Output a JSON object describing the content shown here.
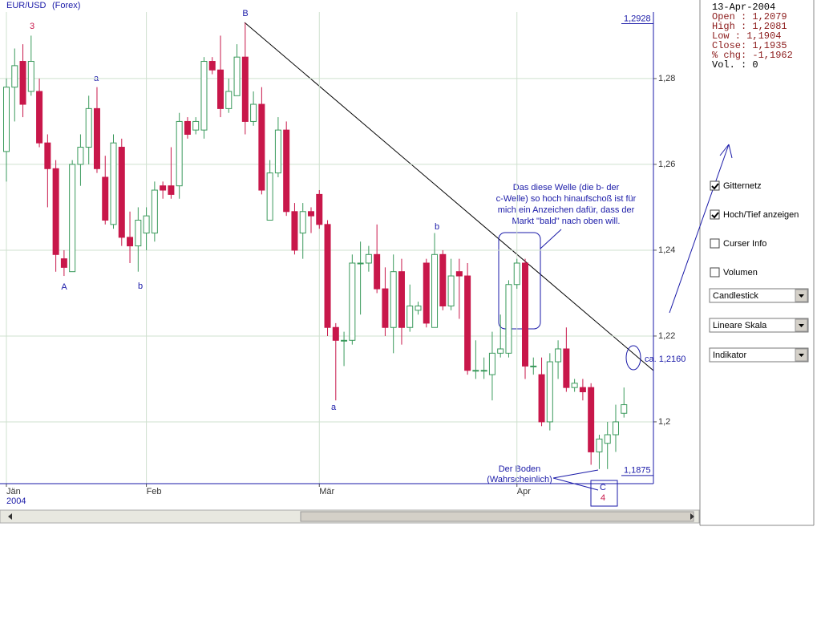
{
  "chart_data": {
    "type": "candlestick",
    "title": "EUR/USD",
    "subtitle": "(Forex)",
    "categories": [
      "Jän",
      null,
      null,
      null,
      null,
      null,
      null,
      null,
      null,
      null,
      null,
      null,
      null,
      null,
      null,
      null,
      null,
      "Feb",
      null,
      null,
      null,
      null,
      null,
      null,
      null,
      null,
      null,
      null,
      null,
      null,
      null,
      null,
      null,
      null,
      null,
      null,
      null,
      null,
      "Mär",
      null,
      null,
      null,
      null,
      null,
      null,
      null,
      null,
      null,
      null,
      null,
      null,
      null,
      null,
      null,
      null,
      null,
      null,
      null,
      null,
      null,
      null,
      null,
      "Apr",
      null,
      null,
      null,
      null,
      null,
      null,
      null,
      null,
      null,
      null,
      null,
      null,
      null
    ],
    "year_label": "2004",
    "open": [
      1.263,
      1.278,
      1.284,
      1.277,
      1.277,
      1.265,
      1.259,
      1.238,
      1.235,
      1.26,
      1.264,
      1.273,
      1.257,
      1.246,
      1.264,
      1.243,
      1.241,
      1.244,
      1.244,
      1.255,
      1.255,
      1.255,
      1.27,
      1.268,
      1.268,
      1.284,
      1.282,
      1.273,
      1.276,
      1.285,
      1.27,
      1.274,
      1.247,
      1.258,
      1.268,
      1.249,
      1.244,
      1.249,
      1.253,
      1.246,
      1.222,
      1.219,
      1.219,
      1.237,
      1.237,
      1.239,
      1.231,
      1.222,
      1.235,
      1.222,
      1.226,
      1.237,
      1.222,
      1.239,
      1.227,
      1.235,
      1.234,
      1.212,
      1.212,
      1.211,
      1.216,
      1.216,
      1.232,
      1.237,
      1.213,
      1.211,
      1.2,
      1.214,
      1.217,
      1.208,
      1.208,
      1.208,
      1.193,
      1.195,
      1.197,
      1.202
    ],
    "high": [
      1.28,
      1.287,
      1.288,
      1.29,
      1.28,
      1.267,
      1.261,
      1.24,
      1.261,
      1.267,
      1.276,
      1.278,
      1.262,
      1.267,
      1.266,
      1.249,
      1.25,
      1.25,
      1.256,
      1.256,
      1.264,
      1.272,
      1.271,
      1.271,
      1.285,
      1.285,
      1.29,
      1.28,
      1.288,
      1.293,
      1.277,
      1.278,
      1.261,
      1.271,
      1.27,
      1.251,
      1.251,
      1.25,
      1.254,
      1.247,
      1.223,
      1.221,
      1.239,
      1.242,
      1.241,
      1.246,
      1.236,
      1.239,
      1.238,
      1.232,
      1.228,
      1.238,
      1.244,
      1.24,
      1.238,
      1.238,
      1.237,
      1.219,
      1.215,
      1.221,
      1.225,
      1.233,
      1.238,
      1.238,
      1.215,
      1.215,
      1.216,
      1.219,
      1.222,
      1.21,
      1.21,
      1.209,
      1.197,
      1.2,
      1.204,
      1.208
    ],
    "low": [
      1.256,
      1.27,
      1.271,
      1.276,
      1.264,
      1.25,
      1.235,
      1.234,
      1.235,
      1.255,
      1.26,
      1.258,
      1.246,
      1.245,
      1.241,
      1.237,
      1.235,
      1.24,
      1.242,
      1.252,
      1.252,
      1.252,
      1.266,
      1.267,
      1.266,
      1.281,
      1.271,
      1.272,
      1.276,
      1.267,
      1.269,
      1.253,
      1.247,
      1.257,
      1.248,
      1.239,
      1.238,
      1.244,
      1.245,
      1.22,
      1.205,
      1.213,
      1.218,
      1.225,
      1.235,
      1.23,
      1.22,
      1.216,
      1.218,
      1.221,
      1.225,
      1.222,
      1.222,
      1.226,
      1.226,
      1.224,
      1.211,
      1.21,
      1.21,
      1.205,
      1.215,
      1.215,
      1.231,
      1.21,
      1.211,
      1.199,
      1.198,
      1.21,
      1.207,
      1.207,
      1.205,
      1.19,
      1.189,
      1.189,
      1.193,
      1.201
    ],
    "close": [
      1.278,
      1.283,
      1.274,
      1.284,
      1.265,
      1.259,
      1.239,
      1.236,
      1.26,
      1.264,
      1.273,
      1.259,
      1.247,
      1.265,
      1.243,
      1.241,
      1.247,
      1.248,
      1.254,
      1.254,
      1.253,
      1.27,
      1.267,
      1.27,
      1.284,
      1.282,
      1.273,
      1.277,
      1.285,
      1.27,
      1.274,
      1.254,
      1.258,
      1.268,
      1.249,
      1.24,
      1.249,
      1.248,
      1.246,
      1.222,
      1.219,
      1.219,
      1.237,
      1.237,
      1.239,
      1.231,
      1.222,
      1.235,
      1.222,
      1.227,
      1.227,
      1.223,
      1.239,
      1.227,
      1.234,
      1.234,
      1.212,
      1.212,
      1.212,
      1.216,
      1.217,
      1.232,
      1.237,
      1.213,
      1.213,
      1.2,
      1.214,
      1.217,
      1.208,
      1.209,
      1.207,
      1.193,
      1.196,
      1.197,
      1.2,
      1.204
    ],
    "up_color": "#3a9a5c",
    "down_color": "#c8174a",
    "ylim": [
      1.1856,
      1.2955
    ],
    "yticks": [
      {
        "value": 1.2,
        "label": "1,2"
      },
      {
        "value": 1.22,
        "label": "1,22"
      },
      {
        "value": 1.24,
        "label": "1,24"
      },
      {
        "value": 1.26,
        "label": "1,26"
      },
      {
        "value": 1.28,
        "label": "1,28"
      }
    ],
    "range_labels": [
      {
        "value": 1.2928,
        "label": "1,2928"
      },
      {
        "value": 1.1875,
        "label": "1,1875"
      }
    ],
    "grid": true,
    "annotations": [
      "3",
      "a",
      "A",
      "b",
      "B",
      "a",
      "b",
      "C",
      "4",
      "ca. 1,2160"
    ],
    "comment_lines": [
      "Das diese Welle (die b- der",
      "c-Welle) so hoch hinaufschoß ist für",
      "mich ein Anzeichen dafür, dass der",
      "Markt \"bald\" nach oben will."
    ],
    "bottom_lines": [
      "Der Boden",
      "(Wahrscheinlich)"
    ]
  },
  "info": {
    "date": "13-Apr-2004",
    "lines": [
      "Open : 1,2079",
      "High : 1,2081",
      "Low  : 1,1904",
      "Close: 1,1935",
      "% chg: -1,1962"
    ],
    "volume": "Vol. : 0"
  },
  "controls": {
    "checkboxes": [
      {
        "label": "Gitternetz",
        "checked": true
      },
      {
        "label": "Hoch/Tief anzeigen",
        "checked": true
      },
      {
        "label": "Curser Info",
        "checked": false
      },
      {
        "label": "Volumen",
        "checked": false
      }
    ],
    "dropdowns": [
      "Candlestick",
      "Lineare Skala",
      "Indikator"
    ]
  }
}
